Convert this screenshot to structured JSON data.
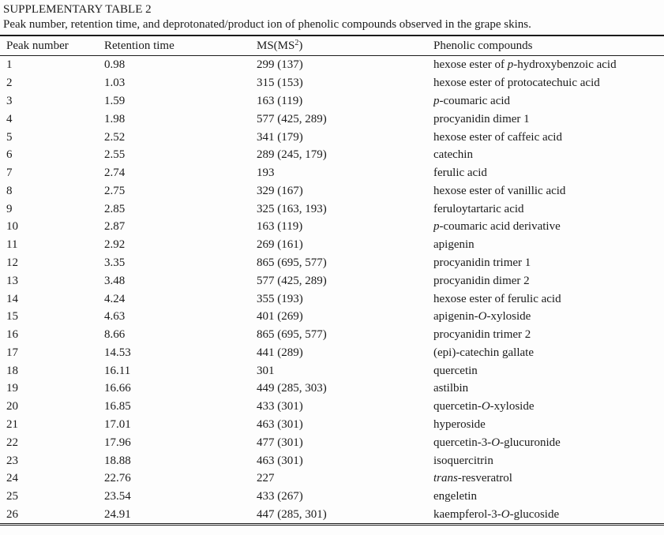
{
  "title": "SUPPLEMENTARY TABLE 2",
  "caption": "Peak number, retention time, and deprotonated/product ion of phenolic compounds observed in the grape skins.",
  "colors": {
    "text": "#1b1b1b",
    "rule": "#1b1b1b",
    "background": "#fdfdfd"
  },
  "table": {
    "headers": {
      "peak": "Peak number",
      "retention": "Retention time",
      "ms_prefix": "MS(MS",
      "ms_sup": "2",
      "ms_suffix": ")",
      "compounds": "Phenolic compounds"
    },
    "rows": [
      {
        "peak": "1",
        "rt": "0.98",
        "ms": "299 (137)",
        "compound": [
          {
            "text": "hexose ester of "
          },
          {
            "text": "p",
            "italic": true
          },
          {
            "text": "-hydroxybenzoic acid"
          }
        ]
      },
      {
        "peak": "2",
        "rt": "1.03",
        "ms": "315 (153)",
        "compound": [
          {
            "text": "hexose ester of protocatechuic acid"
          }
        ]
      },
      {
        "peak": "3",
        "rt": "1.59",
        "ms": "163 (119)",
        "compound": [
          {
            "text": "p",
            "italic": true
          },
          {
            "text": "-coumaric acid"
          }
        ]
      },
      {
        "peak": "4",
        "rt": "1.98",
        "ms": "577 (425, 289)",
        "compound": [
          {
            "text": "procyanidin dimer 1"
          }
        ]
      },
      {
        "peak": "5",
        "rt": "2.52",
        "ms": "341 (179)",
        "compound": [
          {
            "text": "hexose ester of caffeic acid"
          }
        ]
      },
      {
        "peak": "6",
        "rt": "2.55",
        "ms": "289 (245, 179)",
        "compound": [
          {
            "text": "catechin"
          }
        ]
      },
      {
        "peak": "7",
        "rt": "2.74",
        "ms": "193",
        "compound": [
          {
            "text": "ferulic acid"
          }
        ]
      },
      {
        "peak": "8",
        "rt": "2.75",
        "ms": "329 (167)",
        "compound": [
          {
            "text": "hexose ester of vanillic acid"
          }
        ]
      },
      {
        "peak": "9",
        "rt": "2.85",
        "ms": "325 (163, 193)",
        "compound": [
          {
            "text": "feruloytartaric acid"
          }
        ]
      },
      {
        "peak": "10",
        "rt": "2.87",
        "ms": "163 (119)",
        "compound": [
          {
            "text": "p",
            "italic": true
          },
          {
            "text": "-coumaric acid derivative"
          }
        ]
      },
      {
        "peak": "11",
        "rt": "2.92",
        "ms": "269 (161)",
        "compound": [
          {
            "text": "apigenin"
          }
        ]
      },
      {
        "peak": "12",
        "rt": "3.35",
        "ms": "865 (695, 577)",
        "compound": [
          {
            "text": "procyanidin trimer 1"
          }
        ]
      },
      {
        "peak": "13",
        "rt": "3.48",
        "ms": "577 (425, 289)",
        "compound": [
          {
            "text": "procyanidin dimer 2"
          }
        ]
      },
      {
        "peak": "14",
        "rt": "4.24",
        "ms": "355 (193)",
        "compound": [
          {
            "text": "hexose ester of ferulic acid"
          }
        ]
      },
      {
        "peak": "15",
        "rt": "4.63",
        "ms": "401 (269)",
        "compound": [
          {
            "text": "apigenin-"
          },
          {
            "text": "O",
            "italic": true
          },
          {
            "text": "-xyloside"
          }
        ]
      },
      {
        "peak": "16",
        "rt": "8.66",
        "ms": "865 (695, 577)",
        "compound": [
          {
            "text": "procyanidin trimer 2"
          }
        ]
      },
      {
        "peak": "17",
        "rt": "14.53",
        "ms": "441 (289)",
        "compound": [
          {
            "text": "(epi)-catechin gallate"
          }
        ]
      },
      {
        "peak": "18",
        "rt": "16.11",
        "ms": "301",
        "compound": [
          {
            "text": "quercetin"
          }
        ]
      },
      {
        "peak": "19",
        "rt": "16.66",
        "ms": "449 (285, 303)",
        "compound": [
          {
            "text": "astilbin"
          }
        ]
      },
      {
        "peak": "20",
        "rt": "16.85",
        "ms": "433 (301)",
        "compound": [
          {
            "text": "quercetin-"
          },
          {
            "text": "O",
            "italic": true
          },
          {
            "text": "-xyloside"
          }
        ]
      },
      {
        "peak": "21",
        "rt": "17.01",
        "ms": "463 (301)",
        "compound": [
          {
            "text": "hyperoside"
          }
        ]
      },
      {
        "peak": "22",
        "rt": "17.96",
        "ms": "477 (301)",
        "compound": [
          {
            "text": "quercetin-3-"
          },
          {
            "text": "O",
            "italic": true
          },
          {
            "text": "-glucuronide"
          }
        ]
      },
      {
        "peak": "23",
        "rt": "18.88",
        "ms": "463 (301)",
        "compound": [
          {
            "text": "isoquercitrin"
          }
        ]
      },
      {
        "peak": "24",
        "rt": "22.76",
        "ms": "227",
        "compound": [
          {
            "text": "trans",
            "italic": true
          },
          {
            "text": "-resveratrol"
          }
        ]
      },
      {
        "peak": "25",
        "rt": "23.54",
        "ms": "433 (267)",
        "compound": [
          {
            "text": "engeletin"
          }
        ]
      },
      {
        "peak": "26",
        "rt": "24.91",
        "ms": "447 (285, 301)",
        "compound": [
          {
            "text": "kaempferol-3-"
          },
          {
            "text": "O",
            "italic": true
          },
          {
            "text": "-glucoside"
          }
        ]
      }
    ]
  }
}
